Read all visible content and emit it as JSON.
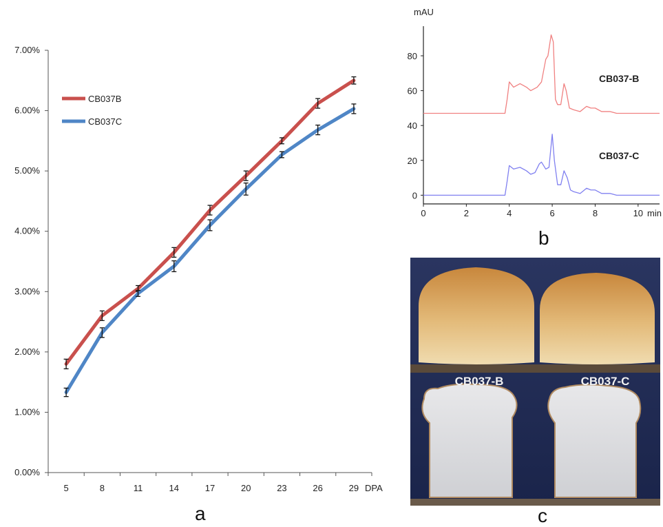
{
  "chart_data": [
    {
      "type": "line",
      "categories": [
        5,
        8,
        11,
        14,
        17,
        20,
        23,
        26,
        29
      ],
      "xlabel": "DPA",
      "ylabel": "",
      "ylim": [
        0,
        0.07
      ],
      "yticks": [
        "0.00%",
        "1.00%",
        "2.00%",
        "3.00%",
        "4.00%",
        "5.00%",
        "6.00%",
        "7.00%"
      ],
      "legend_position": "top-left",
      "grid": false,
      "series": [
        {
          "name": "CB037B",
          "color": "#c9504d",
          "values": [
            0.018,
            0.026,
            0.0305,
            0.0365,
            0.0435,
            0.0492,
            0.055,
            0.0612,
            0.065
          ],
          "errors": [
            0.0008,
            0.0008,
            0.0005,
            0.0008,
            0.0008,
            0.0008,
            0.0005,
            0.0008,
            0.0006
          ]
        },
        {
          "name": "CB037C",
          "color": "#4f86c6",
          "values": [
            0.0133,
            0.0232,
            0.0297,
            0.0342,
            0.041,
            0.047,
            0.0527,
            0.0568,
            0.0603
          ],
          "errors": [
            0.0007,
            0.0008,
            0.0005,
            0.0009,
            0.0009,
            0.001,
            0.0005,
            0.0008,
            0.0008
          ]
        }
      ],
      "panel_label": "a"
    },
    {
      "type": "line",
      "xlabel": "min",
      "ylabel": "mAU",
      "xlim": [
        0,
        11
      ],
      "ylim": [
        -5,
        97
      ],
      "xticks": [
        0,
        2,
        4,
        6,
        8,
        10
      ],
      "yticks": [
        0,
        20,
        40,
        60,
        80
      ],
      "series": [
        {
          "name": "CB037-B",
          "color": "#f08080",
          "x": [
            0,
            3.8,
            3.9,
            4.0,
            4.2,
            4.5,
            4.8,
            5.0,
            5.3,
            5.5,
            5.7,
            5.8,
            5.95,
            6.05,
            6.15,
            6.25,
            6.4,
            6.55,
            6.65,
            6.8,
            7.0,
            7.3,
            7.6,
            7.8,
            8.0,
            8.3,
            8.7,
            9.0,
            11
          ],
          "values": [
            47,
            47,
            55,
            65,
            62,
            64,
            62,
            60,
            62,
            65,
            78,
            80,
            92,
            88,
            55,
            52,
            52,
            64,
            60,
            50,
            49,
            48,
            51,
            50,
            50,
            48,
            48,
            47,
            47
          ]
        },
        {
          "name": "CB037-C",
          "color": "#8080f0",
          "x": [
            0,
            3.8,
            3.9,
            4.0,
            4.2,
            4.5,
            4.8,
            5.0,
            5.2,
            5.4,
            5.5,
            5.7,
            5.85,
            6.0,
            6.1,
            6.25,
            6.4,
            6.55,
            6.7,
            6.85,
            7.0,
            7.3,
            7.6,
            7.8,
            8.0,
            8.3,
            8.7,
            9.0,
            11
          ],
          "values": [
            0,
            0,
            8,
            17,
            15,
            16,
            14,
            12,
            13,
            18,
            19,
            15,
            16,
            35,
            20,
            6,
            6,
            14,
            10,
            3,
            2,
            1,
            4,
            3,
            3,
            1,
            1,
            0,
            0
          ]
        }
      ],
      "labels": [
        "CB037-B",
        "CB037-C"
      ],
      "panel_label": "b"
    }
  ],
  "photo": {
    "labels": [
      "CB037-B",
      "CB037-C"
    ],
    "panel_label": "c"
  }
}
